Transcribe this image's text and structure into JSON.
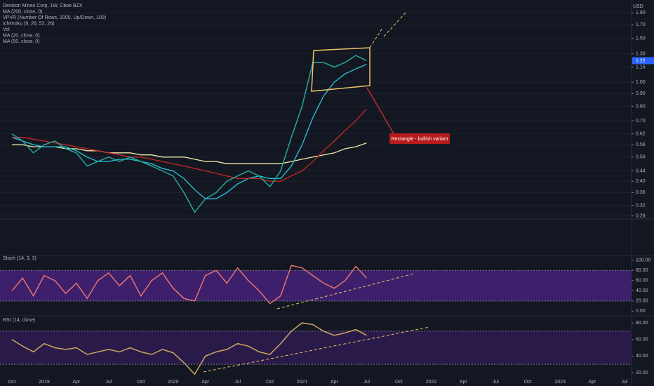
{
  "chart_data": [
    {
      "type": "line",
      "title": "Denison Mines Corp, 1W, Cboe BZX",
      "indicators": [
        "VPVR (Number Of Rows, 2000, Up/Down, 100)",
        "Ichimoku (9, 26, 52, 26)",
        "Vol"
      ],
      "y_unit_label": "USD",
      "annotation": "Rectangle - bullish variant",
      "categories": [
        "Oct",
        null,
        null,
        "2019",
        null,
        null,
        "Apr",
        null,
        null,
        "Jul",
        null,
        null,
        "Oct",
        null,
        null,
        "2020",
        null,
        null,
        "Apr",
        null,
        null,
        "Jul",
        null,
        null,
        "Oct",
        null,
        null,
        "2021",
        null,
        null,
        "Apr",
        null,
        null,
        "Jul",
        null,
        null,
        "Oct",
        null,
        null,
        "2022",
        null,
        null,
        "Apr",
        null,
        null,
        "Jul",
        null,
        null,
        "Oct",
        null,
        null,
        "2023",
        null,
        null,
        "Apr",
        null,
        null,
        "Jul"
      ],
      "color": "#26a69a",
      "values": [
        0.62,
        0.58,
        0.52,
        0.56,
        0.58,
        0.54,
        0.52,
        0.46,
        0.48,
        0.5,
        0.48,
        0.5,
        0.48,
        0.46,
        0.44,
        0.42,
        0.36,
        0.3,
        0.34,
        0.36,
        0.4,
        0.42,
        0.44,
        0.42,
        0.38,
        0.44,
        0.6,
        0.8,
        1.2,
        1.2,
        1.15,
        1.2,
        1.28,
        1.22,
        null,
        null,
        null,
        null,
        null,
        null,
        null,
        null,
        null,
        null,
        null,
        null,
        null,
        null,
        null,
        null,
        null,
        null,
        null,
        null,
        null,
        null,
        null,
        null
      ],
      "series": [
        {
          "name": "MA (200, close, 0)",
          "color": "#f5e9a8",
          "values": [
            0.56,
            0.56,
            0.55,
            0.55,
            0.55,
            0.54,
            0.54,
            0.53,
            0.53,
            0.52,
            0.52,
            0.52,
            0.51,
            0.51,
            0.5,
            0.5,
            0.5,
            0.49,
            0.48,
            0.48,
            0.47,
            0.47,
            0.47,
            0.47,
            0.47,
            0.47,
            0.48,
            0.49,
            0.5,
            0.51,
            0.52,
            0.54,
            0.55,
            0.57,
            null,
            null,
            null,
            null,
            null,
            null,
            null,
            null,
            null,
            null,
            null,
            null,
            null,
            null,
            null,
            null,
            null,
            null,
            null,
            null,
            null,
            null,
            null,
            null
          ]
        },
        {
          "name": "MA (20, close, 0)",
          "color": "#26c6da",
          "values": [
            0.6,
            0.58,
            0.56,
            0.55,
            0.55,
            0.55,
            0.53,
            0.5,
            0.48,
            0.48,
            0.49,
            0.49,
            0.48,
            0.47,
            0.45,
            0.44,
            0.41,
            0.37,
            0.34,
            0.34,
            0.36,
            0.39,
            0.41,
            0.42,
            0.41,
            0.41,
            0.46,
            0.56,
            0.72,
            0.88,
            1.0,
            1.08,
            1.13,
            1.18,
            null,
            null,
            null,
            null,
            null,
            null,
            null,
            null,
            null,
            null,
            null,
            null,
            null,
            null,
            null,
            null,
            null,
            null,
            null,
            null,
            null,
            null,
            null,
            null
          ]
        },
        {
          "name": "MA (50, close, 0)",
          "color": "#c62828",
          "values": [
            0.6,
            0.6,
            0.59,
            0.58,
            0.57,
            0.56,
            0.55,
            0.54,
            0.53,
            0.52,
            0.51,
            0.5,
            0.5,
            0.49,
            0.48,
            0.47,
            0.46,
            0.45,
            0.44,
            0.43,
            0.42,
            0.41,
            0.41,
            0.41,
            0.4,
            0.4,
            0.42,
            0.44,
            0.48,
            0.53,
            0.58,
            0.64,
            0.7,
            0.78,
            null,
            null,
            null,
            null,
            null,
            null,
            null,
            null,
            null,
            null,
            null,
            null,
            null,
            null,
            null,
            null,
            null,
            null,
            null,
            null,
            null,
            null,
            null,
            null
          ]
        }
      ],
      "log_scale": true,
      "grid": true,
      "ylim": [
        0.282,
        2.07
      ],
      "yticks": [
        {
          "value": 1.9,
          "label": "1.90"
        },
        {
          "value": 1.7,
          "label": "1.70"
        },
        {
          "value": 1.5,
          "label": "1.50"
        },
        {
          "value": 1.3,
          "label": "1.30"
        },
        1.15,
        {
          "value": 1.0,
          "label": "1.00"
        },
        {
          "value": 0.9,
          "label": "0.90"
        },
        {
          "value": 0.8,
          "label": "0.80"
        },
        {
          "value": 0.7,
          "label": "0.70"
        },
        0.62,
        0.56,
        {
          "value": 0.5,
          "label": "0.50"
        },
        0.44,
        {
          "value": 0.4,
          "label": "0.40"
        },
        0.36,
        0.32,
        0.29
      ]
    },
    {
      "type": "line",
      "title": "Stoch (14, 3, 3)",
      "color": "#e57373",
      "values": [
        40,
        65,
        30,
        70,
        60,
        35,
        55,
        25,
        60,
        75,
        50,
        70,
        30,
        60,
        75,
        45,
        25,
        20,
        70,
        80,
        55,
        85,
        60,
        40,
        15,
        30,
        90,
        85,
        70,
        55,
        45,
        60,
        88,
        65,
        null,
        null,
        null,
        null,
        null,
        null,
        null,
        null,
        null,
        null,
        null,
        null,
        null,
        null,
        null,
        null,
        null,
        null,
        null,
        null,
        null,
        null,
        null,
        null
      ],
      "band": [
        20,
        80
      ],
      "band_color": "#3d1f6b",
      "ylim": [
        -5,
        108
      ],
      "yticks": [
        {
          "value": 100,
          "label": "100.00"
        },
        {
          "value": 80,
          "label": "80.00"
        },
        {
          "value": 60,
          "label": "60.00"
        },
        {
          "value": 40,
          "label": "40.00"
        },
        {
          "value": 20,
          "label": "20.00"
        },
        {
          "value": 0,
          "label": "0.00"
        }
      ]
    },
    {
      "type": "line",
      "title": "RSI (14, close)",
      "color": "#c9a85c",
      "values": [
        60,
        52,
        45,
        55,
        50,
        48,
        50,
        42,
        45,
        48,
        45,
        50,
        45,
        42,
        48,
        44,
        32,
        18,
        40,
        45,
        48,
        55,
        52,
        45,
        42,
        55,
        70,
        80,
        78,
        70,
        65,
        68,
        72,
        65,
        null,
        null,
        null,
        null,
        null,
        null,
        null,
        null,
        null,
        null,
        null,
        null,
        null,
        null,
        null,
        null,
        null,
        null,
        null,
        null,
        null,
        null,
        null,
        null
      ],
      "band": [
        30,
        70
      ],
      "band_color": "#2a1a4a",
      "ylim": [
        5.6,
        86
      ],
      "yticks": [
        {
          "value": 80,
          "label": "80.00"
        },
        {
          "value": 60,
          "label": "60.00"
        },
        {
          "value": 40,
          "label": "40.00"
        },
        {
          "value": 20,
          "label": "20.00"
        }
      ]
    }
  ]
}
